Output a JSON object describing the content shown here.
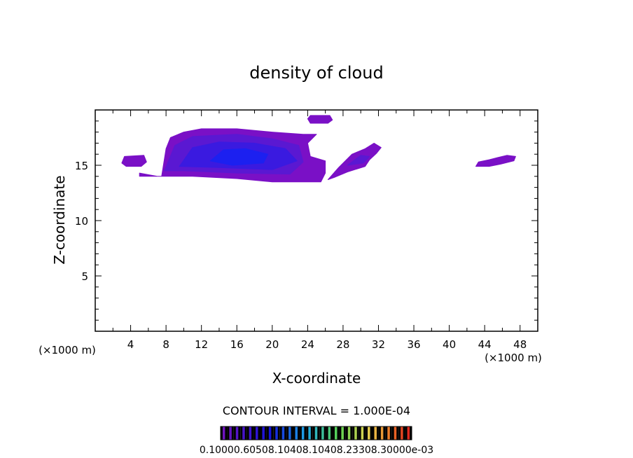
{
  "chart_data": {
    "type": "heatmap",
    "title": "density of cloud",
    "xlabel": "X-coordinate",
    "ylabel": "Z-coordinate",
    "x_unit_left": "(×1000 m)",
    "x_unit_right": "(×1000 m)",
    "xlim": [
      0,
      50
    ],
    "ylim": [
      0,
      20
    ],
    "x_ticks": [
      "4",
      "8",
      "12",
      "16",
      "20",
      "24",
      "28",
      "32",
      "36",
      "40",
      "44",
      "48"
    ],
    "y_ticks": [
      "5",
      "10",
      "15"
    ],
    "contour_interval_text": "CONTOUR INTERVAL = 1.000E-04",
    "colorbar_labels_text": "0.10000.60508.10408.10408.23308.30000e-03",
    "colorbar_range": [
      0.0001,
      0.003
    ],
    "colors": {
      "outer": "#7a10c6",
      "mid": "#5a18d2",
      "inner": "#3a1ae0",
      "core": "#1c20f0"
    },
    "regions": [
      {
        "name": "main-cloud",
        "level": "outer",
        "polygon": [
          [
            5,
            14
          ],
          [
            7.5,
            14
          ],
          [
            8,
            16.5
          ],
          [
            8.5,
            17.5
          ],
          [
            10,
            18
          ],
          [
            12,
            18.3
          ],
          [
            16,
            18.3
          ],
          [
            20,
            18
          ],
          [
            23.5,
            17.8
          ],
          [
            25,
            17.8
          ],
          [
            24,
            17
          ],
          [
            24.3,
            15.8
          ],
          [
            26,
            15.4
          ],
          [
            26,
            14.3
          ],
          [
            25.5,
            13.5
          ],
          [
            20,
            13.5
          ],
          [
            16,
            13.8
          ],
          [
            11,
            14
          ],
          [
            7,
            14
          ],
          [
            5,
            14.3
          ]
        ]
      },
      {
        "name": "main-cloud",
        "level": "mid",
        "polygon": [
          [
            7.8,
            14.5
          ],
          [
            9,
            16.8
          ],
          [
            11,
            17.6
          ],
          [
            16,
            17.8
          ],
          [
            20,
            17.4
          ],
          [
            23,
            16.8
          ],
          [
            23.5,
            15.3
          ],
          [
            22,
            14.2
          ],
          [
            16,
            14.3
          ],
          [
            10,
            14.5
          ]
        ]
      },
      {
        "name": "main-cloud",
        "level": "inner",
        "polygon": [
          [
            9.5,
            14.9
          ],
          [
            11,
            16.6
          ],
          [
            14,
            17.1
          ],
          [
            18,
            17
          ],
          [
            21.5,
            16.5
          ],
          [
            22.8,
            15.4
          ],
          [
            20,
            14.6
          ],
          [
            14,
            14.8
          ]
        ]
      },
      {
        "name": "main-cloud",
        "level": "core",
        "polygon": [
          [
            13,
            15.4
          ],
          [
            14.5,
            16.4
          ],
          [
            17,
            16.5
          ],
          [
            19.5,
            16
          ],
          [
            19,
            15.2
          ],
          [
            15.5,
            15
          ]
        ]
      },
      {
        "name": "left-blob",
        "level": "outer",
        "polygon": [
          [
            3,
            15.2
          ],
          [
            3.3,
            15.8
          ],
          [
            5.5,
            15.9
          ],
          [
            5.8,
            15.3
          ],
          [
            5.2,
            14.9
          ],
          [
            3.5,
            14.9
          ]
        ]
      },
      {
        "name": "top-blob",
        "level": "outer",
        "polygon": [
          [
            24,
            19.2
          ],
          [
            24.3,
            19.5
          ],
          [
            26.5,
            19.5
          ],
          [
            26.8,
            19.1
          ],
          [
            26.3,
            18.8
          ],
          [
            24.3,
            18.8
          ]
        ]
      },
      {
        "name": "right-streak",
        "level": "outer",
        "polygon": [
          [
            26.3,
            13.7
          ],
          [
            27.5,
            14.8
          ],
          [
            29,
            16
          ],
          [
            30.5,
            16.5
          ],
          [
            31.5,
            17
          ],
          [
            32.3,
            16.6
          ],
          [
            31.8,
            16.1
          ],
          [
            31,
            15.5
          ],
          [
            30.5,
            14.9
          ],
          [
            28.5,
            14.4
          ],
          [
            27,
            13.9
          ]
        ]
      },
      {
        "name": "right-streak",
        "level": "mid",
        "polygon": [
          [
            28.5,
            15
          ],
          [
            30,
            15.9
          ],
          [
            31,
            15.8
          ],
          [
            30.3,
            15.2
          ]
        ]
      },
      {
        "name": "far-right-blob",
        "level": "outer",
        "polygon": [
          [
            43,
            14.9
          ],
          [
            43.3,
            15.3
          ],
          [
            44.5,
            15.5
          ],
          [
            45.5,
            15.7
          ],
          [
            46.5,
            15.9
          ],
          [
            47.5,
            15.8
          ],
          [
            47.3,
            15.4
          ],
          [
            45.8,
            15.1
          ],
          [
            44.5,
            14.9
          ]
        ]
      }
    ]
  }
}
